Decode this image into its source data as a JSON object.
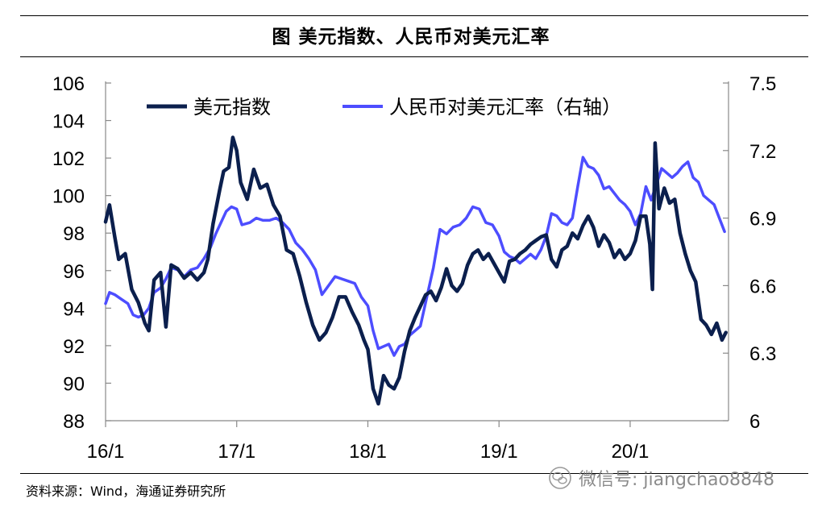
{
  "header": {
    "title": "图 美元指数、人民币对美元汇率"
  },
  "footer": {
    "source": "资料来源：Wind，海通证券研究所"
  },
  "watermark": {
    "text": "微信号: jiangchao8848",
    "icon": "wechat-icon"
  },
  "colors": {
    "dxy": "#0b1f4d",
    "cny": "#4d4dff",
    "axis": "#888888"
  },
  "chart_data": {
    "type": "line",
    "title": "图 美元指数、人民币对美元汇率",
    "legend_position": "top",
    "x_ticks": [
      "16/1",
      "17/1",
      "18/1",
      "19/1",
      "20/1"
    ],
    "x_tick_values": [
      2016.0,
      2017.0,
      2018.0,
      2019.0,
      2020.0
    ],
    "xlim": [
      2016.0,
      2020.75
    ],
    "y_left": {
      "ticks": [
        "106",
        "104",
        "102",
        "100",
        "98",
        "96",
        "94",
        "92",
        "90",
        "88"
      ],
      "ylim": [
        88,
        106
      ]
    },
    "y_right": {
      "ticks": [
        "7.5",
        "7.2",
        "6.9",
        "6.6",
        "6.3",
        "6"
      ],
      "ylim": [
        6.0,
        7.5
      ]
    },
    "series": [
      {
        "name": "美元指数",
        "axis": "left",
        "points": [
          [
            2016.0,
            98.6
          ],
          [
            2016.03,
            99.5
          ],
          [
            2016.07,
            97.8
          ],
          [
            2016.1,
            96.6
          ],
          [
            2016.15,
            96.9
          ],
          [
            2016.2,
            95.0
          ],
          [
            2016.25,
            94.3
          ],
          [
            2016.3,
            93.2
          ],
          [
            2016.33,
            92.8
          ],
          [
            2016.37,
            95.5
          ],
          [
            2016.42,
            95.9
          ],
          [
            2016.46,
            93.0
          ],
          [
            2016.5,
            96.3
          ],
          [
            2016.55,
            96.1
          ],
          [
            2016.6,
            95.6
          ],
          [
            2016.65,
            95.9
          ],
          [
            2016.7,
            95.5
          ],
          [
            2016.75,
            95.9
          ],
          [
            2016.78,
            96.6
          ],
          [
            2016.82,
            98.5
          ],
          [
            2016.87,
            100.3
          ],
          [
            2016.9,
            101.3
          ],
          [
            2016.94,
            101.5
          ],
          [
            2016.97,
            103.1
          ],
          [
            2017.0,
            102.4
          ],
          [
            2017.03,
            100.7
          ],
          [
            2017.08,
            99.8
          ],
          [
            2017.13,
            101.4
          ],
          [
            2017.18,
            100.4
          ],
          [
            2017.23,
            100.6
          ],
          [
            2017.28,
            99.5
          ],
          [
            2017.33,
            98.9
          ],
          [
            2017.38,
            97.1
          ],
          [
            2017.43,
            96.9
          ],
          [
            2017.48,
            95.7
          ],
          [
            2017.53,
            94.3
          ],
          [
            2017.58,
            93.1
          ],
          [
            2017.63,
            92.3
          ],
          [
            2017.68,
            92.7
          ],
          [
            2017.73,
            93.5
          ],
          [
            2017.78,
            94.6
          ],
          [
            2017.83,
            94.6
          ],
          [
            2017.88,
            93.8
          ],
          [
            2017.93,
            93.1
          ],
          [
            2017.97,
            92.3
          ],
          [
            2018.0,
            91.8
          ],
          [
            2018.04,
            89.7
          ],
          [
            2018.08,
            88.9
          ],
          [
            2018.12,
            90.4
          ],
          [
            2018.16,
            89.9
          ],
          [
            2018.2,
            89.7
          ],
          [
            2018.24,
            90.3
          ],
          [
            2018.28,
            91.7
          ],
          [
            2018.32,
            92.8
          ],
          [
            2018.36,
            93.5
          ],
          [
            2018.4,
            94.1
          ],
          [
            2018.44,
            94.7
          ],
          [
            2018.48,
            94.9
          ],
          [
            2018.52,
            94.4
          ],
          [
            2018.56,
            95.1
          ],
          [
            2018.6,
            96.1
          ],
          [
            2018.64,
            95.2
          ],
          [
            2018.68,
            94.9
          ],
          [
            2018.72,
            95.3
          ],
          [
            2018.76,
            96.3
          ],
          [
            2018.8,
            96.9
          ],
          [
            2018.84,
            97.1
          ],
          [
            2018.88,
            96.6
          ],
          [
            2018.92,
            96.9
          ],
          [
            2018.96,
            96.4
          ],
          [
            2019.0,
            95.9
          ],
          [
            2019.04,
            95.4
          ],
          [
            2019.08,
            96.5
          ],
          [
            2019.12,
            96.6
          ],
          [
            2019.16,
            96.9
          ],
          [
            2019.2,
            97.1
          ],
          [
            2019.24,
            97.4
          ],
          [
            2019.28,
            97.6
          ],
          [
            2019.32,
            97.8
          ],
          [
            2019.36,
            97.9
          ],
          [
            2019.4,
            96.6
          ],
          [
            2019.44,
            96.2
          ],
          [
            2019.48,
            97.1
          ],
          [
            2019.52,
            97.3
          ],
          [
            2019.56,
            98.0
          ],
          [
            2019.6,
            97.7
          ],
          [
            2019.64,
            98.4
          ],
          [
            2019.68,
            98.9
          ],
          [
            2019.72,
            98.3
          ],
          [
            2019.76,
            97.3
          ],
          [
            2019.8,
            97.9
          ],
          [
            2019.84,
            97.5
          ],
          [
            2019.88,
            96.7
          ],
          [
            2019.92,
            97.1
          ],
          [
            2019.96,
            96.6
          ],
          [
            2020.0,
            96.9
          ],
          [
            2020.04,
            97.6
          ],
          [
            2020.08,
            98.9
          ],
          [
            2020.12,
            98.9
          ],
          [
            2020.15,
            97.4
          ],
          [
            2020.17,
            95.0
          ],
          [
            2020.19,
            102.8
          ],
          [
            2020.22,
            99.3
          ],
          [
            2020.26,
            100.4
          ],
          [
            2020.3,
            99.6
          ],
          [
            2020.34,
            99.8
          ],
          [
            2020.38,
            98.0
          ],
          [
            2020.42,
            96.9
          ],
          [
            2020.46,
            96.0
          ],
          [
            2020.5,
            95.4
          ],
          [
            2020.54,
            93.4
          ],
          [
            2020.58,
            93.1
          ],
          [
            2020.62,
            92.6
          ],
          [
            2020.66,
            93.2
          ],
          [
            2020.7,
            92.3
          ],
          [
            2020.73,
            92.7
          ]
        ]
      },
      {
        "name": "人民币对美元汇率（右轴）",
        "axis": "right",
        "points": [
          [
            2016.0,
            6.52
          ],
          [
            2016.03,
            6.57
          ],
          [
            2016.07,
            6.56
          ],
          [
            2016.12,
            6.54
          ],
          [
            2016.17,
            6.52
          ],
          [
            2016.21,
            6.47
          ],
          [
            2016.25,
            6.46
          ],
          [
            2016.29,
            6.47
          ],
          [
            2016.33,
            6.5
          ],
          [
            2016.37,
            6.57
          ],
          [
            2016.42,
            6.59
          ],
          [
            2016.46,
            6.63
          ],
          [
            2016.5,
            6.68
          ],
          [
            2016.55,
            6.67
          ],
          [
            2016.6,
            6.64
          ],
          [
            2016.65,
            6.67
          ],
          [
            2016.7,
            6.68
          ],
          [
            2016.75,
            6.72
          ],
          [
            2016.8,
            6.77
          ],
          [
            2016.84,
            6.83
          ],
          [
            2016.88,
            6.88
          ],
          [
            2016.92,
            6.93
          ],
          [
            2016.96,
            6.95
          ],
          [
            2017.0,
            6.94
          ],
          [
            2017.04,
            6.87
          ],
          [
            2017.1,
            6.88
          ],
          [
            2017.15,
            6.9
          ],
          [
            2017.2,
            6.89
          ],
          [
            2017.25,
            6.89
          ],
          [
            2017.3,
            6.9
          ],
          [
            2017.35,
            6.88
          ],
          [
            2017.4,
            6.85
          ],
          [
            2017.45,
            6.79
          ],
          [
            2017.5,
            6.76
          ],
          [
            2017.55,
            6.72
          ],
          [
            2017.6,
            6.67
          ],
          [
            2017.65,
            6.56
          ],
          [
            2017.7,
            6.6
          ],
          [
            2017.75,
            6.64
          ],
          [
            2017.8,
            6.63
          ],
          [
            2017.85,
            6.62
          ],
          [
            2017.9,
            6.61
          ],
          [
            2017.95,
            6.55
          ],
          [
            2018.0,
            6.51
          ],
          [
            2018.04,
            6.4
          ],
          [
            2018.08,
            6.32
          ],
          [
            2018.12,
            6.33
          ],
          [
            2018.16,
            6.34
          ],
          [
            2018.2,
            6.29
          ],
          [
            2018.24,
            6.33
          ],
          [
            2018.28,
            6.34
          ],
          [
            2018.32,
            6.38
          ],
          [
            2018.36,
            6.4
          ],
          [
            2018.4,
            6.42
          ],
          [
            2018.45,
            6.55
          ],
          [
            2018.5,
            6.68
          ],
          [
            2018.55,
            6.85
          ],
          [
            2018.6,
            6.83
          ],
          [
            2018.65,
            6.86
          ],
          [
            2018.7,
            6.87
          ],
          [
            2018.75,
            6.9
          ],
          [
            2018.8,
            6.95
          ],
          [
            2018.85,
            6.94
          ],
          [
            2018.9,
            6.88
          ],
          [
            2018.95,
            6.87
          ],
          [
            2019.0,
            6.82
          ],
          [
            2019.04,
            6.75
          ],
          [
            2019.08,
            6.73
          ],
          [
            2019.12,
            6.72
          ],
          [
            2019.16,
            6.7
          ],
          [
            2019.2,
            6.72
          ],
          [
            2019.24,
            6.74
          ],
          [
            2019.28,
            6.72
          ],
          [
            2019.32,
            6.76
          ],
          [
            2019.36,
            6.82
          ],
          [
            2019.4,
            6.92
          ],
          [
            2019.44,
            6.91
          ],
          [
            2019.48,
            6.88
          ],
          [
            2019.52,
            6.87
          ],
          [
            2019.56,
            6.9
          ],
          [
            2019.6,
            7.04
          ],
          [
            2019.64,
            7.17
          ],
          [
            2019.68,
            7.13
          ],
          [
            2019.72,
            7.12
          ],
          [
            2019.76,
            7.09
          ],
          [
            2019.8,
            7.03
          ],
          [
            2019.84,
            7.04
          ],
          [
            2019.88,
            7.01
          ],
          [
            2019.92,
            6.98
          ],
          [
            2019.96,
            6.96
          ],
          [
            2020.0,
            6.93
          ],
          [
            2020.04,
            6.87
          ],
          [
            2020.08,
            6.92
          ],
          [
            2020.12,
            7.04
          ],
          [
            2020.16,
            6.98
          ],
          [
            2020.2,
            7.05
          ],
          [
            2020.24,
            7.12
          ],
          [
            2020.28,
            7.1
          ],
          [
            2020.32,
            7.08
          ],
          [
            2020.36,
            7.1
          ],
          [
            2020.4,
            7.13
          ],
          [
            2020.44,
            7.15
          ],
          [
            2020.48,
            7.08
          ],
          [
            2020.52,
            7.06
          ],
          [
            2020.56,
            7.0
          ],
          [
            2020.6,
            6.98
          ],
          [
            2020.64,
            6.96
          ],
          [
            2020.68,
            6.9
          ],
          [
            2020.72,
            6.84
          ]
        ]
      }
    ]
  }
}
